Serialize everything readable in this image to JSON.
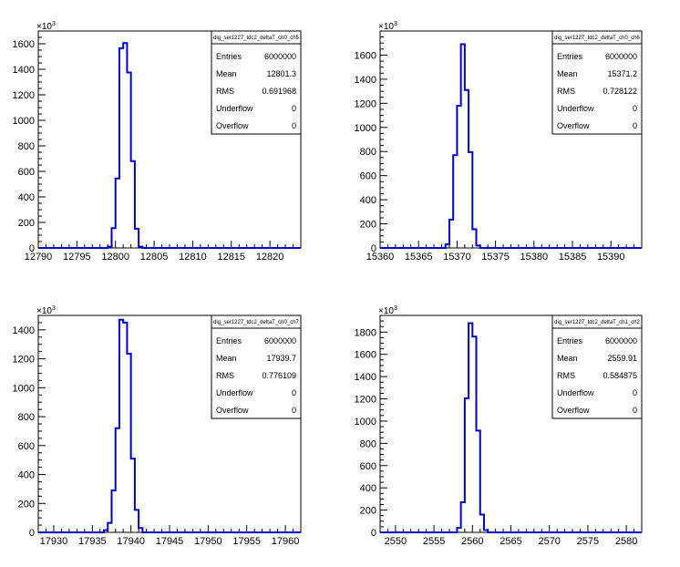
{
  "chart_data": [
    {
      "type": "histogram",
      "stats_title": "dig_ser1227_tdc2_deltaT_ch0_ch5",
      "y_multiplier_label": "×10",
      "y_multiplier_exp": "3",
      "xlim": [
        12790,
        12824
      ],
      "ylim": [
        0,
        1700
      ],
      "x_ticks": [
        12790,
        12795,
        12800,
        12805,
        12810,
        12815,
        12820
      ],
      "y_ticks": [
        0,
        200,
        400,
        600,
        800,
        1000,
        1200,
        1400,
        1600
      ],
      "bins": [
        {
          "x": 12799,
          "w": 0.5,
          "y": 10
        },
        {
          "x": 12799.5,
          "w": 0.5,
          "y": 155
        },
        {
          "x": 12800,
          "w": 0.5,
          "y": 545
        },
        {
          "x": 12800.5,
          "w": 0.5,
          "y": 1565
        },
        {
          "x": 12801,
          "w": 0.5,
          "y": 1605
        },
        {
          "x": 12801.5,
          "w": 0.5,
          "y": 1375
        },
        {
          "x": 12802,
          "w": 0.5,
          "y": 680
        },
        {
          "x": 12802.5,
          "w": 0.5,
          "y": 150
        },
        {
          "x": 12803,
          "w": 0.5,
          "y": 10
        }
      ],
      "stats": [
        {
          "label": "Entries",
          "value": "6000000"
        },
        {
          "label": "Mean",
          "value": "12801.3"
        },
        {
          "label": "RMS",
          "value": "0.691968"
        },
        {
          "label": "Underflow",
          "value": "0"
        },
        {
          "label": "Overflow",
          "value": "0"
        }
      ]
    },
    {
      "type": "histogram",
      "stats_title": "dig_ser1227_tdc2_deltaT_ch0_ch6",
      "y_multiplier_label": "×10",
      "y_multiplier_exp": "3",
      "xlim": [
        15360,
        15394
      ],
      "ylim": [
        0,
        1800
      ],
      "x_ticks": [
        15360,
        15365,
        15370,
        15375,
        15380,
        15385,
        15390
      ],
      "y_ticks": [
        0,
        200,
        400,
        600,
        800,
        1000,
        1200,
        1400,
        1600
      ],
      "bins": [
        {
          "x": 15368.5,
          "w": 0.5,
          "y": 30
        },
        {
          "x": 15369,
          "w": 0.5,
          "y": 235
        },
        {
          "x": 15369.5,
          "w": 0.5,
          "y": 770
        },
        {
          "x": 15370,
          "w": 0.5,
          "y": 1180
        },
        {
          "x": 15370.5,
          "w": 0.5,
          "y": 1690
        },
        {
          "x": 15371,
          "w": 0.5,
          "y": 1310
        },
        {
          "x": 15371.5,
          "w": 0.5,
          "y": 795
        },
        {
          "x": 15372,
          "w": 0.5,
          "y": 155
        },
        {
          "x": 15372.5,
          "w": 0.5,
          "y": 20
        }
      ],
      "stats": [
        {
          "label": "Entries",
          "value": "6000000"
        },
        {
          "label": "Mean",
          "value": "15371.2"
        },
        {
          "label": "RMS",
          "value": "0.728122"
        },
        {
          "label": "Underflow",
          "value": "0"
        },
        {
          "label": "Overflow",
          "value": "0"
        }
      ]
    },
    {
      "type": "histogram",
      "stats_title": "dig_ser1227_tdc2_deltaT_ch0_ch7",
      "y_multiplier_label": "×10",
      "y_multiplier_exp": "3",
      "xlim": [
        17928,
        17962
      ],
      "ylim": [
        0,
        1500
      ],
      "x_ticks": [
        17930,
        17935,
        17940,
        17945,
        17950,
        17955,
        17960
      ],
      "y_ticks": [
        0,
        200,
        400,
        600,
        800,
        1000,
        1200,
        1400
      ],
      "bins": [
        {
          "x": 17936.5,
          "w": 0.5,
          "y": 15
        },
        {
          "x": 17937,
          "w": 0.5,
          "y": 65
        },
        {
          "x": 17937.5,
          "w": 0.5,
          "y": 290
        },
        {
          "x": 17938,
          "w": 0.5,
          "y": 720
        },
        {
          "x": 17938.5,
          "w": 0.5,
          "y": 1470
        },
        {
          "x": 17939,
          "w": 0.5,
          "y": 1450
        },
        {
          "x": 17939.5,
          "w": 0.5,
          "y": 1235
        },
        {
          "x": 17940,
          "w": 0.5,
          "y": 510
        },
        {
          "x": 17940.5,
          "w": 0.5,
          "y": 155
        },
        {
          "x": 17941,
          "w": 0.5,
          "y": 30
        }
      ],
      "stats": [
        {
          "label": "Entries",
          "value": "6000000"
        },
        {
          "label": "Mean",
          "value": "17939.7"
        },
        {
          "label": "RMS",
          "value": "0.776109"
        },
        {
          "label": "Underflow",
          "value": "0"
        },
        {
          "label": "Overflow",
          "value": "0"
        }
      ]
    },
    {
      "type": "histogram",
      "stats_title": "dig_ser1227_tdc2_deltaT_ch1_ch2",
      "y_multiplier_label": "×10",
      "y_multiplier_exp": "3",
      "xlim": [
        2548,
        2582
      ],
      "ylim": [
        0,
        1950
      ],
      "x_ticks": [
        2550,
        2555,
        2560,
        2565,
        2570,
        2575,
        2580
      ],
      "y_ticks": [
        0,
        200,
        400,
        600,
        800,
        1000,
        1200,
        1400,
        1600,
        1800
      ],
      "bins": [
        {
          "x": 2558,
          "w": 0.5,
          "y": 40
        },
        {
          "x": 2558.5,
          "w": 0.5,
          "y": 270
        },
        {
          "x": 2559,
          "w": 0.5,
          "y": 1205
        },
        {
          "x": 2559.5,
          "w": 0.5,
          "y": 1880
        },
        {
          "x": 2560,
          "w": 0.5,
          "y": 1760
        },
        {
          "x": 2560.5,
          "w": 0.5,
          "y": 915
        },
        {
          "x": 2561,
          "w": 0.5,
          "y": 160
        },
        {
          "x": 2561.5,
          "w": 0.5,
          "y": 20
        }
      ],
      "stats": [
        {
          "label": "Entries",
          "value": "6000000"
        },
        {
          "label": "Mean",
          "value": "2559.91"
        },
        {
          "label": "RMS",
          "value": "0.584875"
        },
        {
          "label": "Underflow",
          "value": "0"
        },
        {
          "label": "Overflow",
          "value": "0"
        }
      ]
    }
  ],
  "colors": {
    "histogram_line": "#0000cc",
    "axis": "#000000",
    "background": "#ffffff"
  }
}
